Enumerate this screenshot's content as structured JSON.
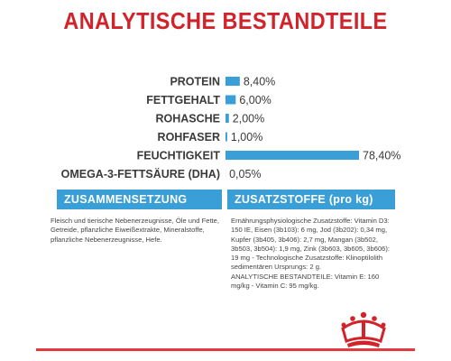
{
  "colors": {
    "title_red": "#d2232a",
    "bar_blue": "#3a9fd6",
    "tab_blue": "#3a9fd6",
    "footer_red": "#e03a3f"
  },
  "title": "ANALYTISCHE BESTANDTEILE",
  "chart_data": {
    "type": "bar",
    "orientation": "horizontal",
    "title": "",
    "categories": [
      "PROTEIN",
      "FETTGEHALT",
      "ROHASCHE",
      "ROHFASER",
      "FEUCHTIGKEIT",
      "OMEGA-3-FETTSÄURE (DHA)"
    ],
    "values": [
      8.4,
      6.0,
      2.0,
      1.0,
      78.4,
      0.05
    ],
    "value_labels": [
      "8,40%",
      "6,00%",
      "2,00%",
      "1,00%",
      "78,40%",
      "0,05%"
    ],
    "unit": "%",
    "xlim": [
      0,
      100
    ],
    "grid": false,
    "legend": "none"
  },
  "sections": {
    "composition": {
      "header": "ZUSAMMENSETZUNG",
      "text": "Fleisch und tierische Nebenerzeugnisse, Öle und Fette, Getreide, pflanzliche Eiweißextrakte, Mineralstoffe, pflanzliche Nebenerzeugnisse, Hefe."
    },
    "additives": {
      "header": "ZUSATZSTOFFE (pro kg)",
      "text": "Ernährungsphysiologische Zusatzstoffe: Vitamin D3: 150 IE, Eisen (3b103): 6 mg, Jod (3b202): 0,34 mg, Kupfer (3b405, 3b406): 2,7 mg, Mangan (3b502, 3b503, 3b504): 1,9 mg, Zink (3b603, 3b605, 3b606): 19 mg - Technologische Zusatzstoffe: Klinoptilolith sedimentären Ursprungs: 2 g.\nANALYTISCHE BESTANDTEILE: Vitamin E: 160 mg/kg - Vitamin C: 95 mg/kg."
    }
  },
  "logo_icon": "crown-icon"
}
